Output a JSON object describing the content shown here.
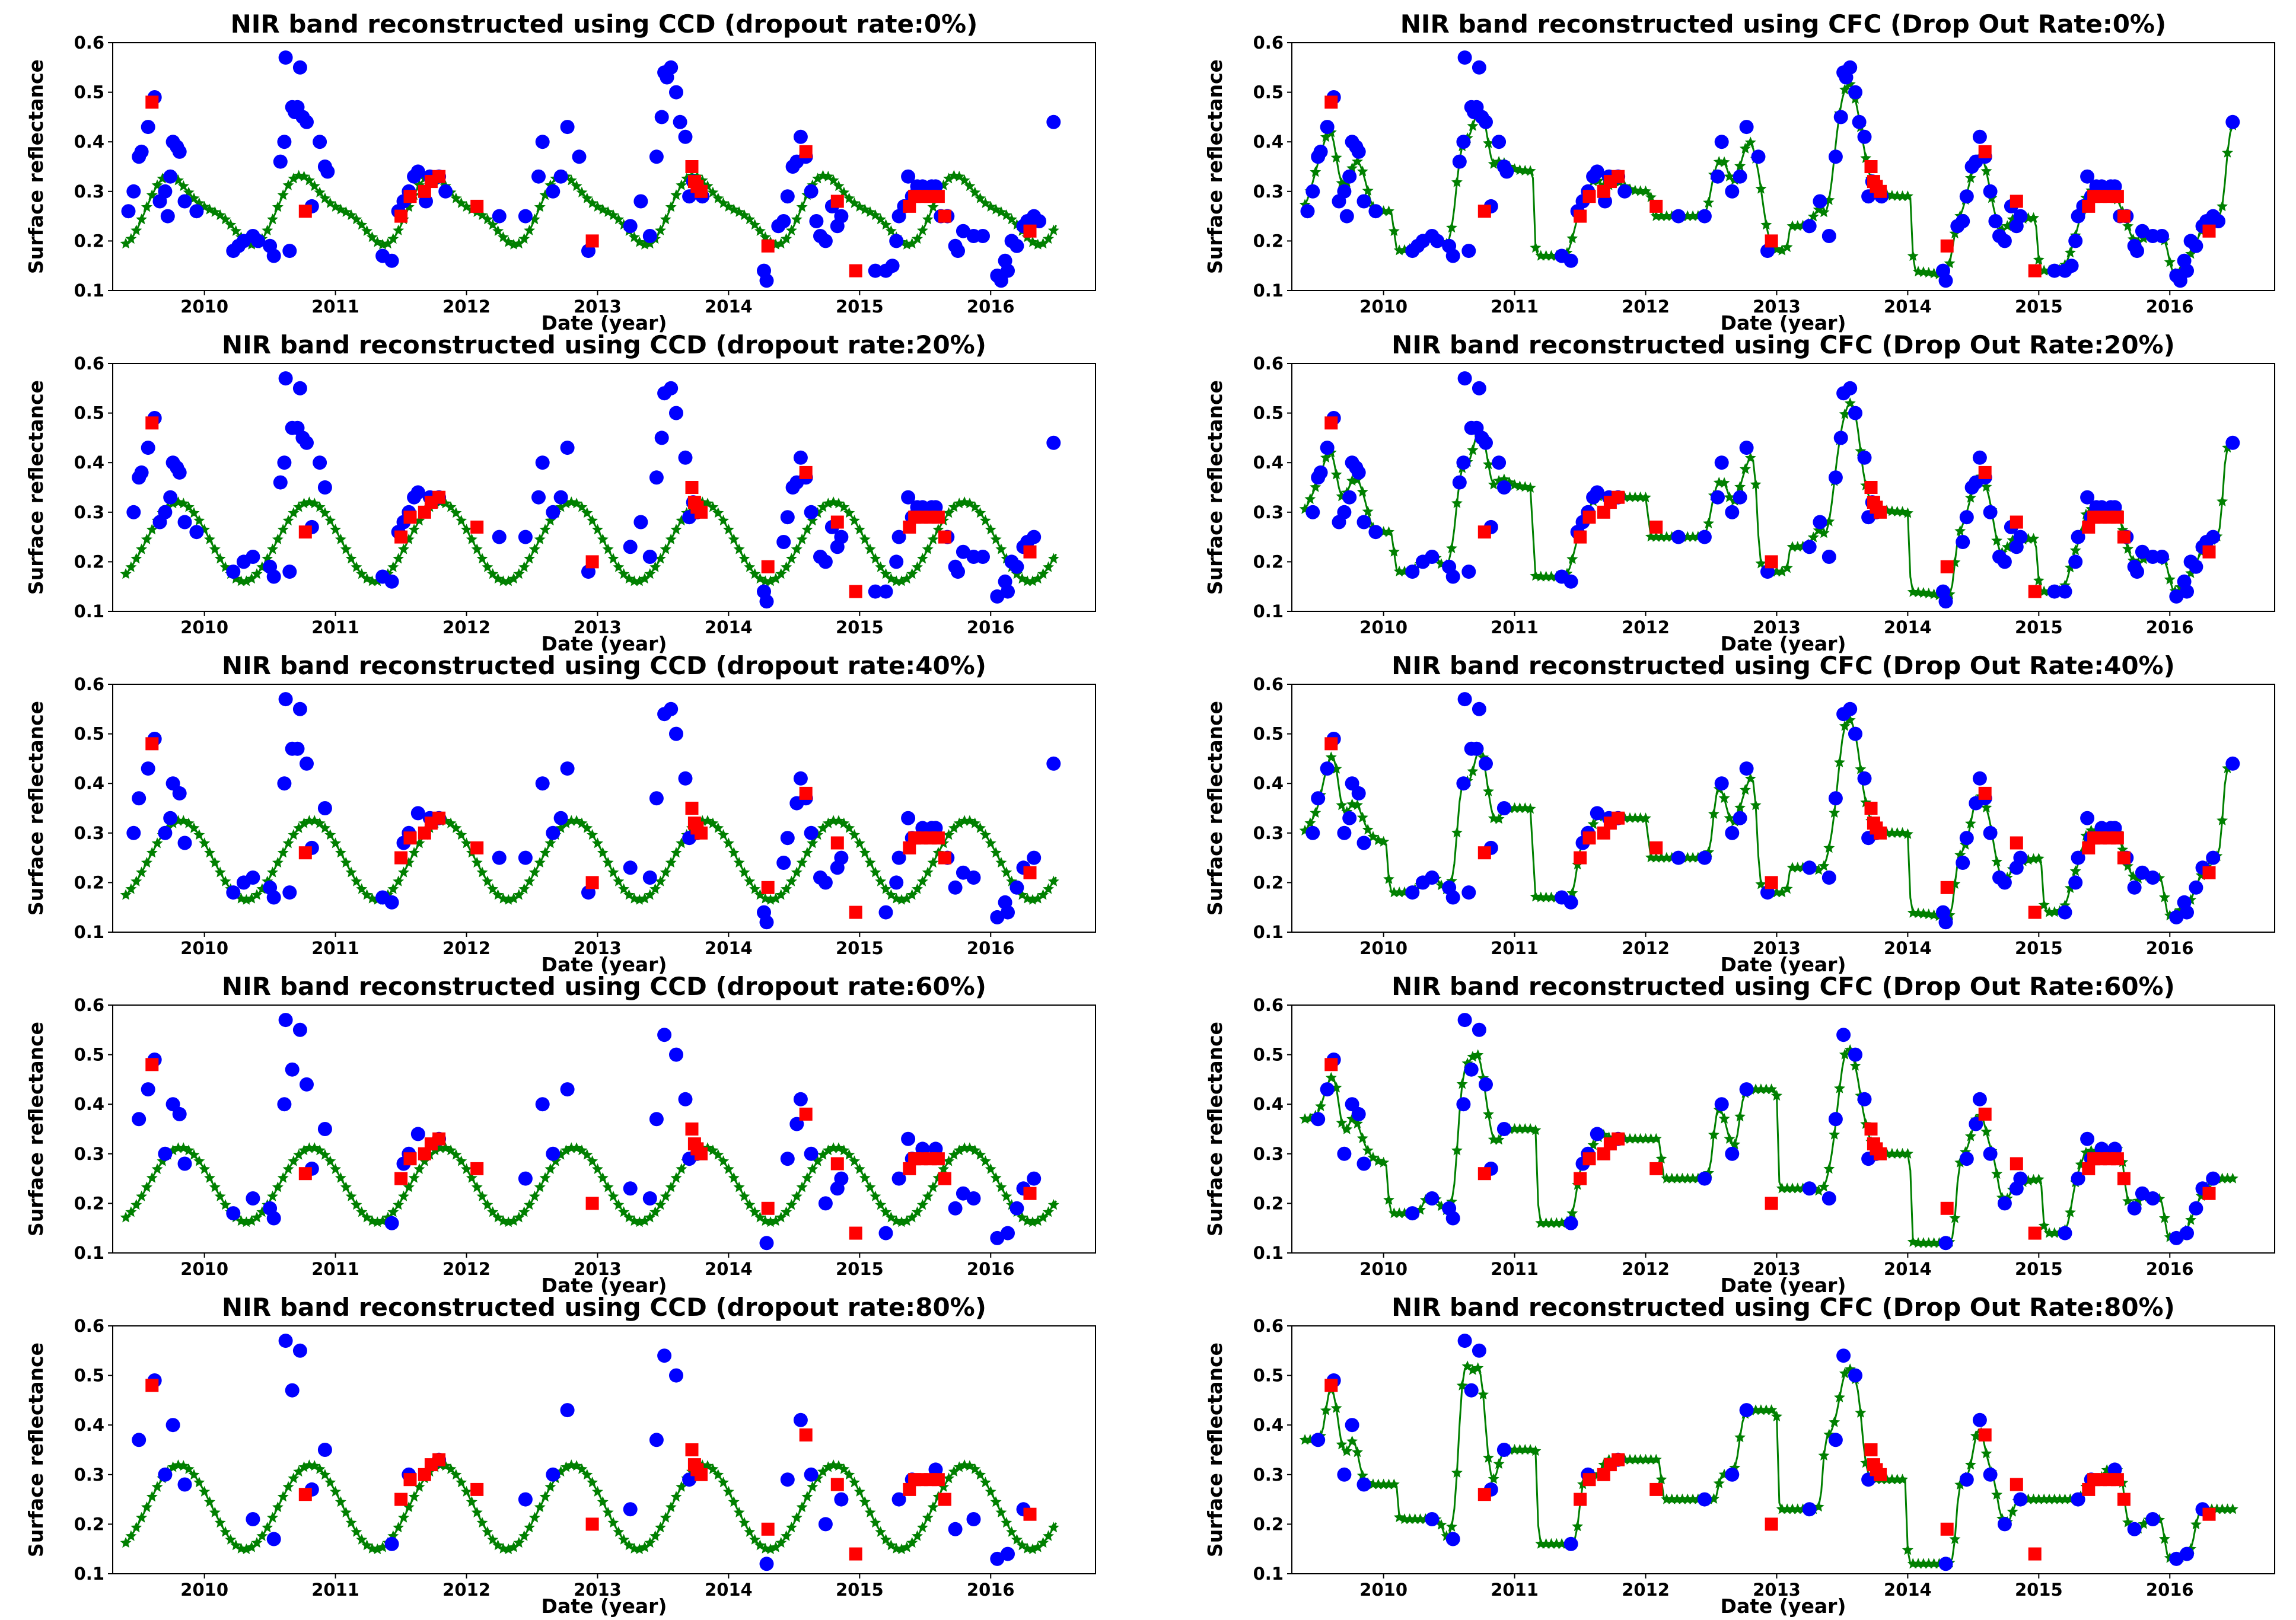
{
  "colors": {
    "observed": "#0000ff",
    "dropped": "#ff0000",
    "reconstruction": "#008000",
    "axes": "#000000",
    "background": "#ffffff"
  },
  "chart_data": [
    {
      "type": "scatter",
      "title": "NIR band reconstructed using CCD (dropout rate:0%)",
      "xlabel": "Date (year)",
      "ylabel": "Surface reflectance",
      "xlim": [
        2009.3,
        2016.8
      ],
      "ylim": [
        0.1,
        0.6
      ],
      "xticks": [
        "2010",
        "2011",
        "2012",
        "2013",
        "2014",
        "2015",
        "2016"
      ],
      "yticks": [
        "0.1",
        "0.2",
        "0.3",
        "0.4",
        "0.5",
        "0.6"
      ],
      "method": "CCD",
      "dropout": 0
    },
    {
      "type": "scatter",
      "title": "NIR band reconstructed using CFC (Drop Out Rate:0%)",
      "xlabel": "Date (year)",
      "ylabel": "Surface reflectance",
      "xlim": [
        2009.3,
        2016.8
      ],
      "ylim": [
        0.1,
        0.6
      ],
      "xticks": [
        "2010",
        "2011",
        "2012",
        "2013",
        "2014",
        "2015",
        "2016"
      ],
      "yticks": [
        "0.1",
        "0.2",
        "0.3",
        "0.4",
        "0.5",
        "0.6"
      ],
      "method": "CFC",
      "dropout": 0
    },
    {
      "type": "scatter",
      "title": "NIR band reconstructed using CCD (dropout rate:20%)",
      "xlabel": "Date (year)",
      "ylabel": "Surface reflectance",
      "xlim": [
        2009.3,
        2016.8
      ],
      "ylim": [
        0.1,
        0.6
      ],
      "xticks": [
        "2010",
        "2011",
        "2012",
        "2013",
        "2014",
        "2015",
        "2016"
      ],
      "yticks": [
        "0.1",
        "0.2",
        "0.3",
        "0.4",
        "0.5",
        "0.6"
      ],
      "method": "CCD",
      "dropout": 0.2
    },
    {
      "type": "scatter",
      "title": "NIR band reconstructed using CFC (Drop Out Rate:20%)",
      "xlabel": "Date (year)",
      "ylabel": "Surface reflectance",
      "xlim": [
        2009.3,
        2016.8
      ],
      "ylim": [
        0.1,
        0.6
      ],
      "xticks": [
        "2010",
        "2011",
        "2012",
        "2013",
        "2014",
        "2015",
        "2016"
      ],
      "yticks": [
        "0.1",
        "0.2",
        "0.3",
        "0.4",
        "0.5",
        "0.6"
      ],
      "method": "CFC",
      "dropout": 0.2
    },
    {
      "type": "scatter",
      "title": "NIR band reconstructed using CCD (dropout rate:40%)",
      "xlabel": "Date (year)",
      "ylabel": "Surface reflectance",
      "xlim": [
        2009.3,
        2016.8
      ],
      "ylim": [
        0.1,
        0.6
      ],
      "xticks": [
        "2010",
        "2011",
        "2012",
        "2013",
        "2014",
        "2015",
        "2016"
      ],
      "yticks": [
        "0.1",
        "0.2",
        "0.3",
        "0.4",
        "0.5",
        "0.6"
      ],
      "method": "CCD",
      "dropout": 0.4
    },
    {
      "type": "scatter",
      "title": "NIR band reconstructed using CFC (Drop Out Rate:40%)",
      "xlabel": "Date (year)",
      "ylabel": "Surface reflectance",
      "xlim": [
        2009.3,
        2016.8
      ],
      "ylim": [
        0.1,
        0.6
      ],
      "xticks": [
        "2010",
        "2011",
        "2012",
        "2013",
        "2014",
        "2015",
        "2016"
      ],
      "yticks": [
        "0.1",
        "0.2",
        "0.3",
        "0.4",
        "0.5",
        "0.6"
      ],
      "method": "CFC",
      "dropout": 0.4
    },
    {
      "type": "scatter",
      "title": "NIR band reconstructed using CCD (dropout rate:60%)",
      "xlabel": "Date (year)",
      "ylabel": "Surface reflectance",
      "xlim": [
        2009.3,
        2016.8
      ],
      "ylim": [
        0.1,
        0.6
      ],
      "xticks": [
        "2010",
        "2011",
        "2012",
        "2013",
        "2014",
        "2015",
        "2016"
      ],
      "yticks": [
        "0.1",
        "0.2",
        "0.3",
        "0.4",
        "0.5",
        "0.6"
      ],
      "method": "CCD",
      "dropout": 0.6
    },
    {
      "type": "scatter",
      "title": "NIR band reconstructed using CFC (Drop Out Rate:60%)",
      "xlabel": "Date (year)",
      "ylabel": "Surface reflectance",
      "xlim": [
        2009.3,
        2016.8
      ],
      "ylim": [
        0.1,
        0.6
      ],
      "xticks": [
        "2010",
        "2011",
        "2012",
        "2013",
        "2014",
        "2015",
        "2016"
      ],
      "yticks": [
        "0.1",
        "0.2",
        "0.3",
        "0.4",
        "0.5",
        "0.6"
      ],
      "method": "CFC",
      "dropout": 0.6
    },
    {
      "type": "scatter",
      "title": "NIR band reconstructed using CCD (dropout rate:80%)",
      "xlabel": "Date (year)",
      "ylabel": "Surface reflectance",
      "xlim": [
        2009.3,
        2016.8
      ],
      "ylim": [
        0.1,
        0.6
      ],
      "xticks": [
        "2010",
        "2011",
        "2012",
        "2013",
        "2014",
        "2015",
        "2016"
      ],
      "yticks": [
        "0.1",
        "0.2",
        "0.3",
        "0.4",
        "0.5",
        "0.6"
      ],
      "method": "CCD",
      "dropout": 0.8
    },
    {
      "type": "scatter",
      "title": "NIR band reconstructed using CFC (Drop Out Rate:80%)",
      "xlabel": "Date (year)",
      "ylabel": "Surface reflectance",
      "xlim": [
        2009.3,
        2016.8
      ],
      "ylim": [
        0.1,
        0.6
      ],
      "xticks": [
        "2010",
        "2011",
        "2012",
        "2013",
        "2014",
        "2015",
        "2016"
      ],
      "yticks": [
        "0.1",
        "0.2",
        "0.3",
        "0.4",
        "0.5",
        "0.6"
      ],
      "method": "CFC",
      "dropout": 0.8
    }
  ],
  "observations": [
    [
      2009.42,
      0.26
    ],
    [
      2009.46,
      0.3
    ],
    [
      2009.5,
      0.37
    ],
    [
      2009.52,
      0.38
    ],
    [
      2009.57,
      0.43
    ],
    [
      2009.62,
      0.49
    ],
    [
      2009.66,
      0.28
    ],
    [
      2009.7,
      0.3
    ],
    [
      2009.72,
      0.25
    ],
    [
      2009.74,
      0.33
    ],
    [
      2009.76,
      0.4
    ],
    [
      2009.79,
      0.39
    ],
    [
      2009.81,
      0.38
    ],
    [
      2009.85,
      0.28
    ],
    [
      2009.94,
      0.26
    ],
    [
      2010.22,
      0.18
    ],
    [
      2010.26,
      0.19
    ],
    [
      2010.3,
      0.2
    ],
    [
      2010.37,
      0.21
    ],
    [
      2010.41,
      0.2
    ],
    [
      2010.5,
      0.19
    ],
    [
      2010.53,
      0.17
    ],
    [
      2010.58,
      0.36
    ],
    [
      2010.61,
      0.4
    ],
    [
      2010.62,
      0.57
    ],
    [
      2010.65,
      0.18
    ],
    [
      2010.67,
      0.47
    ],
    [
      2010.69,
      0.46
    ],
    [
      2010.71,
      0.47
    ],
    [
      2010.73,
      0.55
    ],
    [
      2010.75,
      0.45
    ],
    [
      2010.78,
      0.44
    ],
    [
      2010.82,
      0.27
    ],
    [
      2010.88,
      0.4
    ],
    [
      2010.92,
      0.35
    ],
    [
      2010.94,
      0.34
    ],
    [
      2011.36,
      0.17
    ],
    [
      2011.43,
      0.16
    ],
    [
      2011.48,
      0.26
    ],
    [
      2011.52,
      0.28
    ],
    [
      2011.56,
      0.3
    ],
    [
      2011.6,
      0.33
    ],
    [
      2011.63,
      0.34
    ],
    [
      2011.69,
      0.28
    ],
    [
      2011.72,
      0.33
    ],
    [
      2011.79,
      0.33
    ],
    [
      2011.84,
      0.3
    ],
    [
      2012.25,
      0.25
    ],
    [
      2012.45,
      0.25
    ],
    [
      2012.55,
      0.33
    ],
    [
      2012.58,
      0.4
    ],
    [
      2012.66,
      0.3
    ],
    [
      2012.72,
      0.33
    ],
    [
      2012.77,
      0.43
    ],
    [
      2012.86,
      0.37
    ],
    [
      2012.93,
      0.18
    ],
    [
      2013.25,
      0.23
    ],
    [
      2013.33,
      0.28
    ],
    [
      2013.4,
      0.21
    ],
    [
      2013.45,
      0.37
    ],
    [
      2013.49,
      0.45
    ],
    [
      2013.51,
      0.54
    ],
    [
      2013.53,
      0.53
    ],
    [
      2013.56,
      0.55
    ],
    [
      2013.6,
      0.5
    ],
    [
      2013.63,
      0.44
    ],
    [
      2013.67,
      0.41
    ],
    [
      2013.7,
      0.29
    ],
    [
      2013.73,
      0.32
    ],
    [
      2013.76,
      0.3
    ],
    [
      2013.8,
      0.29
    ],
    [
      2014.27,
      0.14
    ],
    [
      2014.29,
      0.12
    ],
    [
      2014.38,
      0.23
    ],
    [
      2014.42,
      0.24
    ],
    [
      2014.45,
      0.29
    ],
    [
      2014.49,
      0.35
    ],
    [
      2014.52,
      0.36
    ],
    [
      2014.55,
      0.41
    ],
    [
      2014.59,
      0.37
    ],
    [
      2014.63,
      0.3
    ],
    [
      2014.67,
      0.24
    ],
    [
      2014.7,
      0.21
    ],
    [
      2014.74,
      0.2
    ],
    [
      2014.79,
      0.27
    ],
    [
      2014.83,
      0.23
    ],
    [
      2014.86,
      0.25
    ],
    [
      2015.12,
      0.14
    ],
    [
      2015.2,
      0.14
    ],
    [
      2015.25,
      0.15
    ],
    [
      2015.28,
      0.2
    ],
    [
      2015.3,
      0.25
    ],
    [
      2015.34,
      0.27
    ],
    [
      2015.37,
      0.33
    ],
    [
      2015.4,
      0.29
    ],
    [
      2015.44,
      0.31
    ],
    [
      2015.48,
      0.31
    ],
    [
      2015.51,
      0.3
    ],
    [
      2015.55,
      0.31
    ],
    [
      2015.58,
      0.31
    ],
    [
      2015.62,
      0.25
    ],
    [
      2015.67,
      0.25
    ],
    [
      2015.73,
      0.19
    ],
    [
      2015.75,
      0.18
    ],
    [
      2015.79,
      0.22
    ],
    [
      2015.87,
      0.21
    ],
    [
      2015.94,
      0.21
    ],
    [
      2016.05,
      0.13
    ],
    [
      2016.08,
      0.12
    ],
    [
      2016.11,
      0.16
    ],
    [
      2016.13,
      0.14
    ],
    [
      2016.16,
      0.2
    ],
    [
      2016.2,
      0.19
    ],
    [
      2016.25,
      0.23
    ],
    [
      2016.28,
      0.24
    ],
    [
      2016.33,
      0.25
    ],
    [
      2016.37,
      0.24
    ],
    [
      2016.48,
      0.44
    ]
  ],
  "dropped_points": [
    [
      2009.6,
      0.48
    ],
    [
      2010.77,
      0.26
    ],
    [
      2011.5,
      0.25
    ],
    [
      2011.57,
      0.29
    ],
    [
      2011.68,
      0.3
    ],
    [
      2011.73,
      0.32
    ],
    [
      2011.79,
      0.33
    ],
    [
      2012.08,
      0.27
    ],
    [
      2012.96,
      0.2
    ],
    [
      2013.72,
      0.35
    ],
    [
      2013.74,
      0.32
    ],
    [
      2013.76,
      0.31
    ],
    [
      2013.79,
      0.3
    ],
    [
      2014.3,
      0.19
    ],
    [
      2014.59,
      0.38
    ],
    [
      2014.83,
      0.28
    ],
    [
      2014.97,
      0.14
    ],
    [
      2015.38,
      0.27
    ],
    [
      2015.42,
      0.29
    ],
    [
      2015.47,
      0.29
    ],
    [
      2015.54,
      0.29
    ],
    [
      2015.6,
      0.29
    ],
    [
      2015.65,
      0.25
    ],
    [
      2016.3,
      0.22
    ]
  ],
  "reconstruction_models": {
    "CCD": [
      {
        "dropout": 0,
        "base": 0.262,
        "amps": [
          0.06,
          0.02
        ],
        "phase": 0.55,
        "trend": 0.0
      },
      {
        "dropout": 0.2,
        "base": 0.24,
        "amps": [
          0.08,
          0.0
        ],
        "phase": 0.55,
        "trend": 0.0
      },
      {
        "dropout": 0.4,
        "base": 0.245,
        "amps": [
          0.08,
          0.0
        ],
        "phase": 0.57,
        "trend": 0.0
      },
      {
        "dropout": 0.6,
        "base": 0.237,
        "amps": [
          0.075,
          0.0
        ],
        "phase": 0.57,
        "trend": 0.0
      },
      {
        "dropout": 0.8,
        "base": 0.234,
        "amps": [
          0.085,
          0.0
        ],
        "phase": 0.56,
        "trend": 0.0
      }
    ]
  }
}
